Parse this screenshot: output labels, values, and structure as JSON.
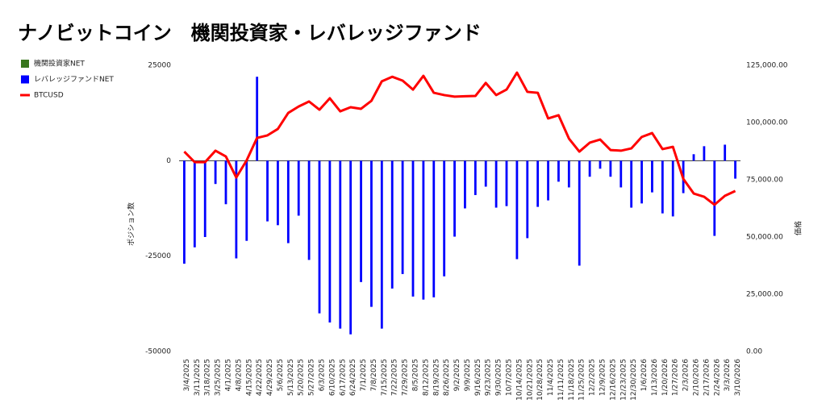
{
  "chart_data": {
    "type": "bar_line",
    "title": "ナノビットコイン　機関投資家・レバレッジファンド",
    "ylabel": "ポジション数",
    "y2label": "価格",
    "categories": [
      "3/4/2025",
      "3/11/2025",
      "3/18/2025",
      "3/25/2025",
      "4/1/2025",
      "4/8/2025",
      "4/15/2025",
      "4/22/2025",
      "4/29/2025",
      "5/6/2025",
      "5/13/2025",
      "5/20/2025",
      "5/27/2025",
      "6/3/2025",
      "6/10/2025",
      "6/17/2025",
      "6/24/2025",
      "7/1/2025",
      "7/8/2025",
      "7/15/2025",
      "7/22/2025",
      "7/29/2025",
      "8/5/2025",
      "8/12/2025",
      "8/19/2025",
      "8/26/2025",
      "9/2/2025",
      "9/9/2025",
      "9/16/2025",
      "9/23/2025",
      "9/30/2025",
      "10/7/2025",
      "10/14/2025",
      "10/21/2025",
      "10/28/2025",
      "11/4/2025",
      "11/11/2025",
      "11/18/2025",
      "11/25/2025",
      "12/2/2025",
      "12/9/2025",
      "12/16/2025",
      "12/23/2025",
      "12/30/2025",
      "1/6/2026",
      "1/13/2026",
      "1/20/2026",
      "1/27/2026",
      "2/3/2026",
      "2/10/2026",
      "2/17/2026",
      "2/24/2026",
      "3/3/2026",
      "3/10/2026"
    ],
    "series": [
      {
        "name": "機関投資家NET",
        "color": "#38761d",
        "kind": "bar",
        "axis": "y",
        "values": [
          null,
          null,
          null,
          null,
          null,
          null,
          null,
          null,
          null,
          null,
          null,
          null,
          null,
          null,
          null,
          null,
          null,
          null,
          null,
          null,
          null,
          null,
          null,
          null,
          null,
          null,
          null,
          null,
          null,
          null,
          null,
          null,
          null,
          null,
          null,
          null,
          null,
          null,
          null,
          null,
          null,
          null,
          null,
          null,
          null,
          null,
          null,
          null,
          null,
          null,
          null,
          null,
          null,
          null
        ]
      },
      {
        "name": "レバレッジファンドNET",
        "color": "#0000ff",
        "kind": "bar",
        "axis": "y",
        "values": [
          -27000,
          -22700,
          -20000,
          -6100,
          -11400,
          -25600,
          -21000,
          22000,
          -15900,
          -16900,
          -21600,
          -14400,
          -26000,
          -40000,
          -42400,
          -44000,
          -45500,
          -31800,
          -38300,
          -44000,
          -33500,
          -29700,
          -35600,
          -36400,
          -35800,
          -30300,
          -19900,
          -12500,
          -9000,
          -6800,
          -12300,
          -11900,
          -25800,
          -20300,
          -12100,
          -10400,
          -5500,
          -7000,
          -27500,
          -4200,
          -2100,
          -4200,
          -7000,
          -12300,
          -11200,
          -8300,
          -13800,
          -14600,
          -8500,
          1700,
          3800,
          -19700,
          4200,
          -4700
        ]
      },
      {
        "name": "BTCUSD",
        "color": "#ff0000",
        "kind": "line",
        "axis": "y2",
        "values": [
          87300,
          82700,
          82700,
          87700,
          85200,
          76000,
          83500,
          93300,
          94400,
          97200,
          104200,
          107000,
          109200,
          105600,
          110600,
          104900,
          106700,
          106000,
          109500,
          118000,
          120000,
          118300,
          114400,
          120400,
          113000,
          112000,
          111300,
          111500,
          111600,
          117300,
          112000,
          114400,
          121800,
          113400,
          113000,
          101800,
          103200,
          93000,
          87300,
          91200,
          92600,
          88000,
          87700,
          88700,
          93700,
          95400,
          88400,
          89400,
          75400,
          69000,
          67600,
          64100,
          68000,
          70100
        ]
      }
    ],
    "ylim": [
      -50000,
      25000
    ],
    "yticks": [
      -50000,
      -25000,
      0,
      25000
    ],
    "y2lim": [
      0,
      125000
    ],
    "y2ticks": [
      {
        "value": 0,
        "label": "0.00"
      },
      {
        "value": 25000,
        "label": "25,000.00"
      },
      {
        "value": 50000,
        "label": "50,000.00"
      },
      {
        "value": 75000,
        "label": "75,000.00"
      },
      {
        "value": 100000,
        "label": "100,000.00"
      },
      {
        "value": 125000,
        "label": "125,000.00"
      }
    ],
    "grid": false,
    "legend": "left"
  }
}
